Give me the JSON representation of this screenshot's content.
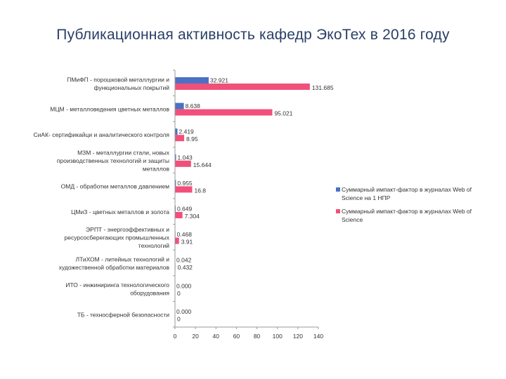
{
  "title": "Публикационная активность кафедр ЭкоТех в 2016 году",
  "colors": {
    "series1": "#4a72c4",
    "series2": "#f0507a",
    "axis": "#999999"
  },
  "chart_data": {
    "type": "bar",
    "orientation": "horizontal",
    "title": "Публикационная активность кафедр ЭкоТех в 2016 году",
    "categories": [
      "ПМиФП - порошковой металлургии и функциональных покрытий",
      "МЦМ - металловедения цветных металлов",
      "СиАК- сертификайци и аналитического контроля",
      "МЗМ - металлургии стали, новых производственных технологий и защиты металлов",
      "ОМД - обработки металлов давлением",
      "ЦМиЗ - цветных металлов и золота",
      "ЭРПТ - энергоэффективных и ресурсосберегающих промышленных технологий",
      "ЛТиХОМ - литейных технологий и художественной обработки материалов",
      "ИТО - инжиниринга технологического оборудования",
      "ТБ - техносферной безопасности"
    ],
    "category_lines": [
      [
        "ПМиФП - порошковой металлургии и",
        "функциональных покрытий"
      ],
      [
        "МЦМ - металловедения цветных металлов"
      ],
      [
        "СиАК- сертификайци и аналитического контроля"
      ],
      [
        "МЗМ - металлургии стали, новых",
        "производственных технологий и защиты",
        "металлов"
      ],
      [
        "ОМД - обработки металлов давлением"
      ],
      [
        "ЦМиЗ - цветных металлов и золота"
      ],
      [
        "ЭРПТ - энергоэффективных и",
        "ресурсосберегающих промышленных",
        "технологий"
      ],
      [
        "ЛТиХОМ - литейных технологий и",
        "художественной обработки материалов"
      ],
      [
        "ИТО - инжиниринга технологического",
        "оборудования"
      ],
      [
        "ТБ - техносферной безопасности"
      ]
    ],
    "series": [
      {
        "name": "Суммарный импакт-фактор в журналах Web of Science на 1 НПР",
        "values": [
          32.921,
          8.638,
          2.419,
          1.043,
          0.955,
          0.649,
          0.468,
          0.042,
          0.0,
          0.0
        ],
        "labels": [
          "32.921",
          "8.638",
          "2.419",
          "1.043",
          "0.955",
          "0.649",
          "0.468",
          "0.042",
          "0.000",
          "0.000"
        ]
      },
      {
        "name": "Суммарный импакт-фактор в журналах Web of Science",
        "values": [
          131.685,
          95.021,
          8.95,
          15.644,
          16.8,
          7.304,
          3.91,
          0.432,
          0,
          0
        ],
        "labels": [
          "131.685",
          "95.021",
          "8.95",
          "15.644",
          "16.8",
          "7.304",
          "3.91",
          "0.432",
          "0",
          "0"
        ]
      }
    ],
    "xlim": [
      0,
      140
    ],
    "xticks": [
      0,
      20,
      40,
      60,
      80,
      100,
      120,
      140
    ],
    "grid": false,
    "legend_position": "right"
  }
}
